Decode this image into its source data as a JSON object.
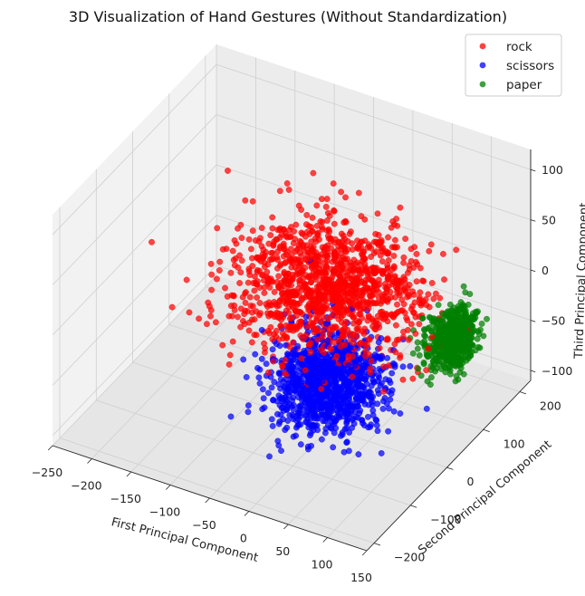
{
  "chart_data": {
    "type": "scatter",
    "projection": "3d",
    "title": "3D Visualization of Hand Gestures (Without Standardization)",
    "xlabel": "First Principal Component",
    "ylabel": "Second Principal Component",
    "zlabel": "Third Principal Component",
    "xlim": [
      -250,
      150
    ],
    "ylim": [
      -220,
      230
    ],
    "zlim": [
      -110,
      120
    ],
    "xticks": [
      "−250",
      "−200",
      "−150",
      "−100",
      "−50",
      "0",
      "50",
      "100",
      "150"
    ],
    "yticks": [
      "−200",
      "−100",
      "0",
      "100",
      "200"
    ],
    "zticks": [
      "−100",
      "−50",
      "0",
      "50",
      "100"
    ],
    "grid": true,
    "legend_position": "top-right",
    "series": [
      {
        "name": "rock",
        "color": "#ff0000",
        "count": 1300,
        "center": [
          -20,
          40,
          10
        ],
        "spread": [
          55,
          60,
          22
        ]
      },
      {
        "name": "scissors",
        "color": "#0000ff",
        "count": 1100,
        "center": [
          15,
          -40,
          -45
        ],
        "spread": [
          32,
          40,
          18
        ]
      },
      {
        "name": "paper",
        "color": "#008000",
        "count": 550,
        "center": [
          135,
          50,
          -5
        ],
        "spread": [
          14,
          26,
          13
        ]
      }
    ]
  }
}
